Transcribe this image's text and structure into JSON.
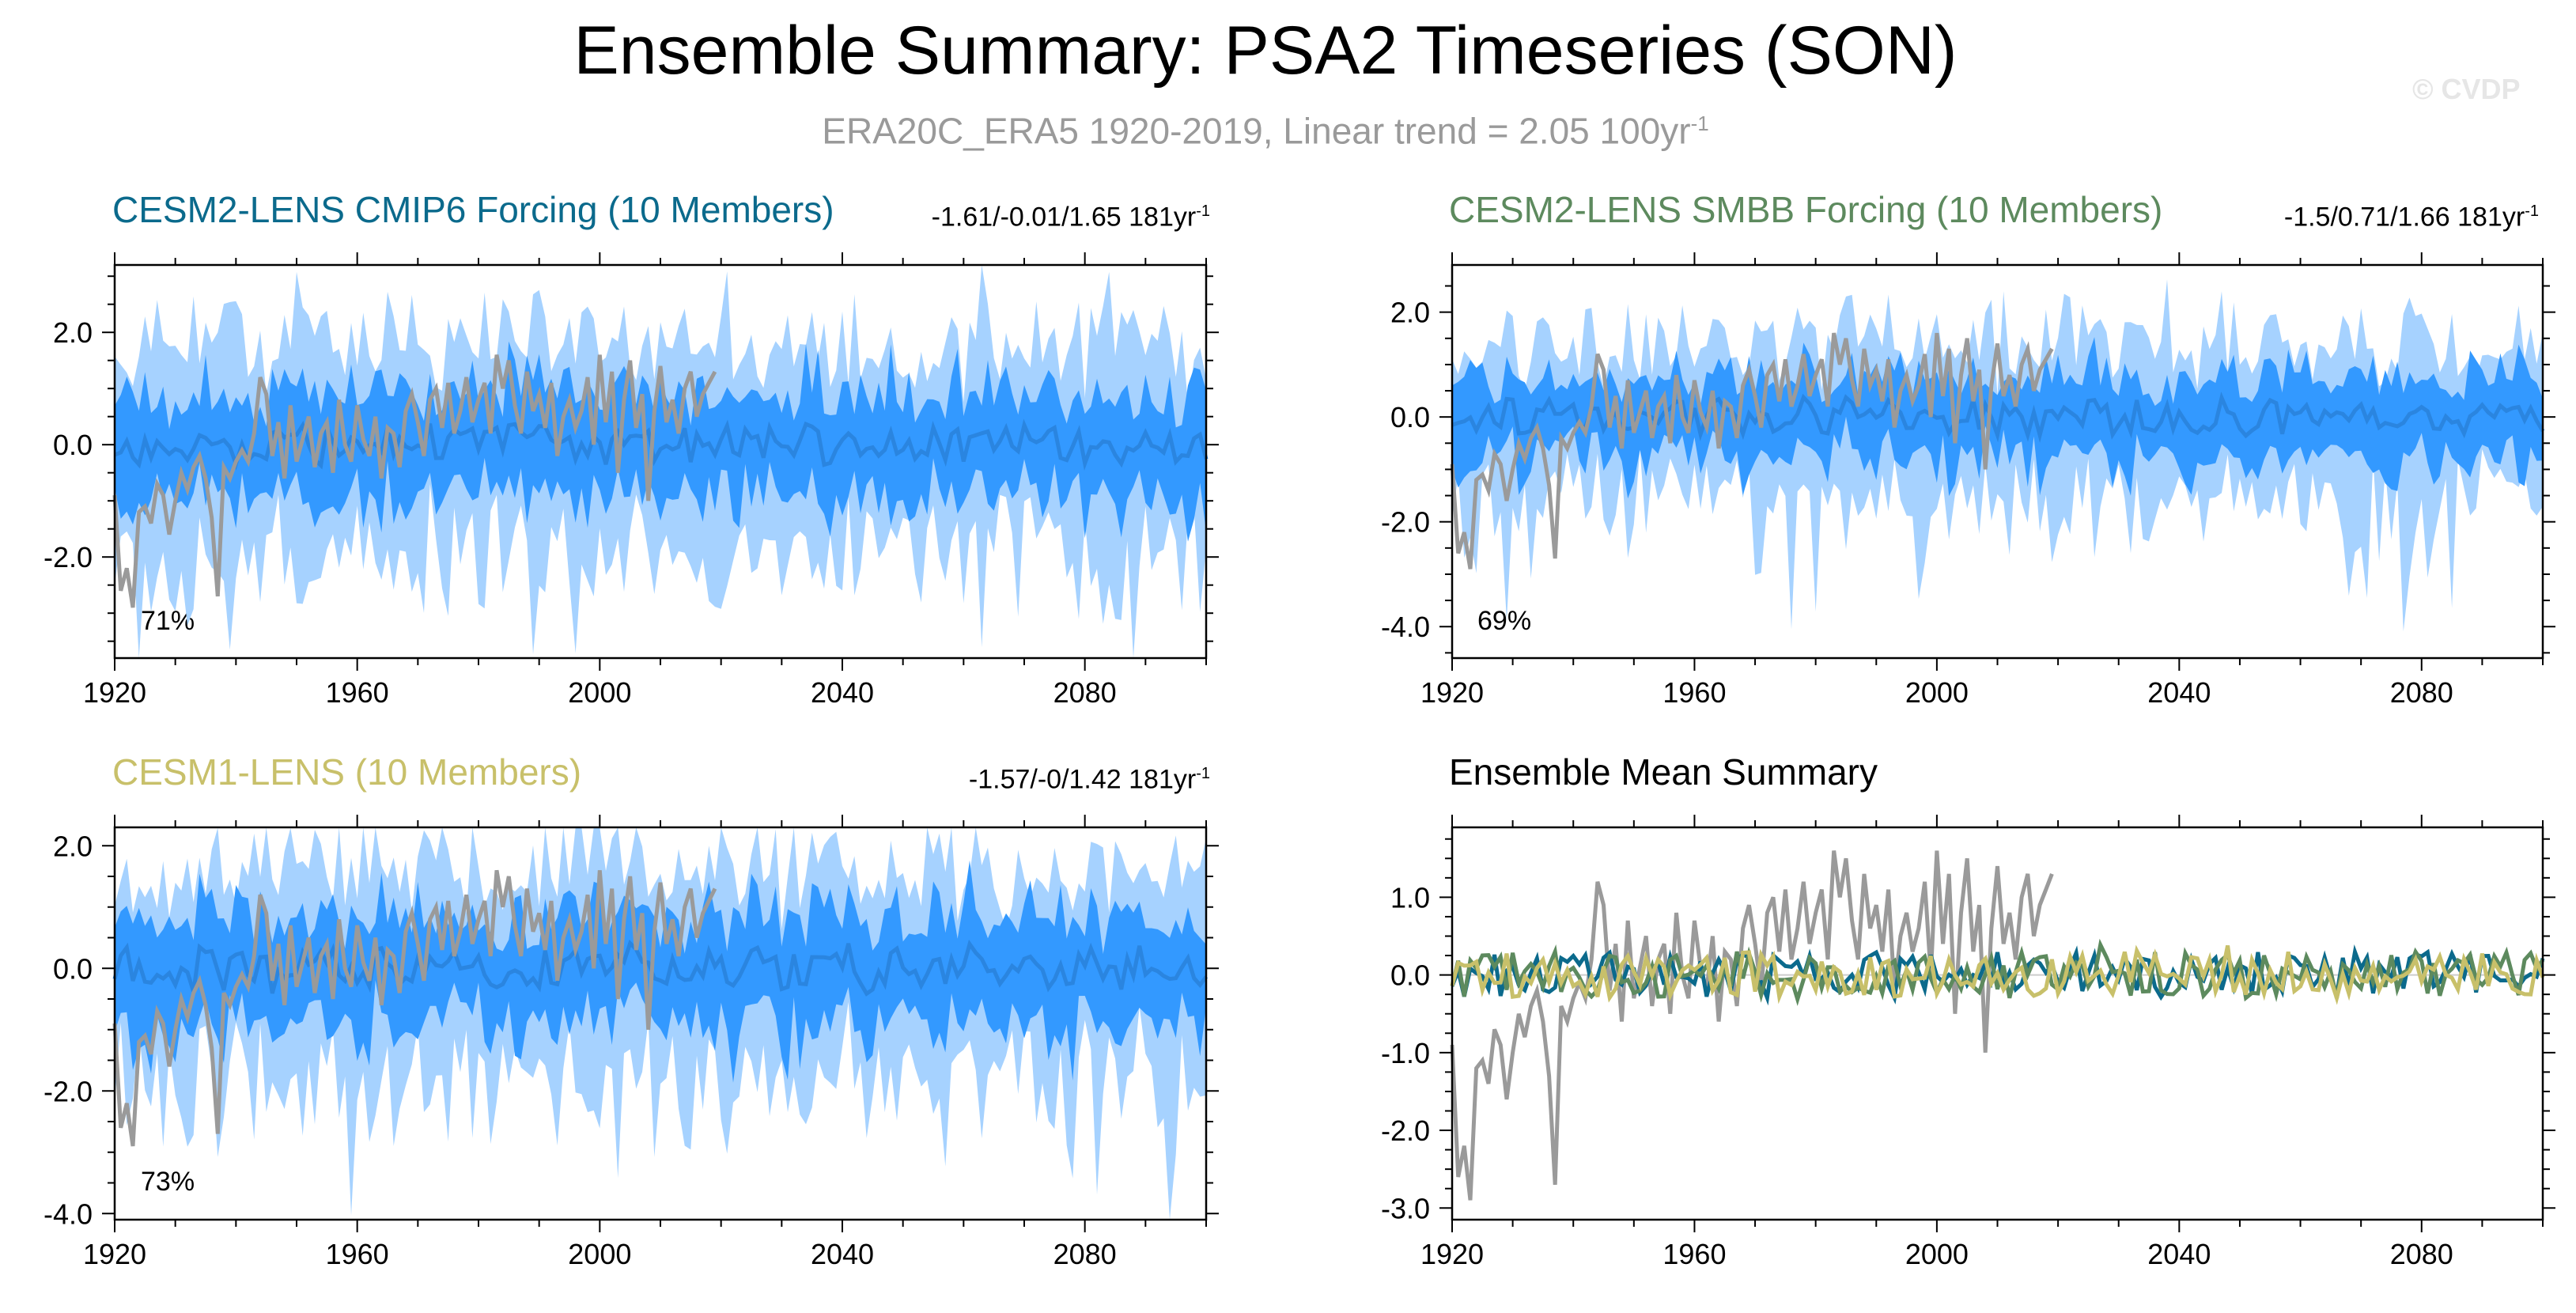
{
  "figure": {
    "title": "Ensemble Summary: PSA2 Timeseries (SON)",
    "subtitle_text": "ERA20C_ERA5 1920-2019, Linear trend = 2.05 100yr",
    "subtitle_sup": "-1",
    "watermark": "© CVDP"
  },
  "colors": {
    "band_outer": "#a6d2ff",
    "band_inner": "#3399ff",
    "ens_mean": "#2a85e0",
    "obs": "#9a9a9a",
    "cmip6": "#0b6a8c",
    "smbb": "#5d8a5e",
    "lens1": "#c8c06a"
  },
  "chart_data": [
    {
      "id": "cmip6",
      "type": "area",
      "title": "CESM2-LENS CMIP6 Forcing (10 Members)",
      "stats_text": "-1.61/-0.01/1.65 181yr",
      "stats_sup": "-1",
      "percent_label": "71%",
      "xlim": [
        1920,
        2100
      ],
      "ylim": [
        -3.8,
        3.2
      ],
      "x_ticks": [
        1920,
        1960,
        2000,
        2040,
        2080
      ],
      "y_ticks": [
        -2.0,
        0.0,
        2.0
      ],
      "y_tick_labels": [
        "-2.0",
        "0.0",
        "2.0"
      ],
      "series": [
        "min-max range",
        "10-90% range",
        "ensemble mean",
        "observations"
      ],
      "mean_amp": 0.35,
      "inner_half": 0.95,
      "outer_half": 1.75,
      "outer_lo_extra": 0.55,
      "seed": 11
    },
    {
      "id": "smbb",
      "type": "area",
      "title": "CESM2-LENS SMBB Forcing (10 Members)",
      "stats_text": "-1.5/0.71/1.66 181yr",
      "stats_sup": "-1",
      "percent_label": "69%",
      "xlim": [
        1920,
        2100
      ],
      "ylim": [
        -4.6,
        2.9
      ],
      "x_ticks": [
        1920,
        1960,
        2000,
        2040,
        2080
      ],
      "y_ticks": [
        -4.0,
        -2.0,
        0.0,
        2.0
      ],
      "y_tick_labels": [
        "-4.0",
        "-2.0",
        "0.0",
        "2.0"
      ],
      "series": [
        "min-max range",
        "10-90% range",
        "ensemble mean",
        "observations"
      ],
      "mean_amp": 0.3,
      "inner_half": 0.8,
      "outer_half": 1.35,
      "outer_lo_extra": 0.9,
      "seed": 23
    },
    {
      "id": "lens1",
      "type": "area",
      "title": "CESM1-LENS (10 Members)",
      "stats_text": "-1.57/-0/1.42 181yr",
      "stats_sup": "-1",
      "percent_label": "73%",
      "xlim": [
        1920,
        2100
      ],
      "ylim": [
        -4.1,
        2.3
      ],
      "x_ticks": [
        1920,
        1960,
        2000,
        2040,
        2080
      ],
      "y_ticks": [
        -4.0,
        -2.0,
        0.0,
        2.0
      ],
      "y_tick_labels": [
        "-4.0",
        "-2.0",
        "0.0",
        "2.0"
      ],
      "series": [
        "min-max range",
        "10-90% range",
        "ensemble mean",
        "observations"
      ],
      "mean_amp": 0.35,
      "inner_half": 0.9,
      "outer_half": 1.6,
      "outer_lo_extra": 0.8,
      "seed": 37
    },
    {
      "id": "summary",
      "type": "line",
      "title": "Ensemble Mean Summary",
      "xlim": [
        1920,
        2100
      ],
      "ylim": [
        -3.15,
        1.9
      ],
      "x_ticks": [
        1920,
        1960,
        2000,
        2040,
        2080
      ],
      "y_ticks": [
        -3.0,
        -2.0,
        -1.0,
        0.0,
        1.0
      ],
      "y_tick_labels": [
        "-3.0",
        "-2.0",
        "-1.0",
        "0.0",
        "1.0"
      ],
      "series": [
        {
          "name": "ERA20C_ERA5",
          "color_key": "obs",
          "seed": 5,
          "amp": 0.0
        },
        {
          "name": "CESM2-LENS CMIP6",
          "color_key": "cmip6",
          "seed": 61,
          "amp": 0.3
        },
        {
          "name": "CESM2-LENS SMBB",
          "color_key": "smbb",
          "seed": 73,
          "amp": 0.3
        },
        {
          "name": "CESM1-LENS",
          "color_key": "lens1",
          "seed": 89,
          "amp": 0.3
        }
      ]
    }
  ],
  "observations": {
    "name": "ERA20C_ERA5",
    "years": [
      1920,
      2019
    ],
    "values": [
      -0.9,
      -2.6,
      -2.2,
      -2.9,
      -1.2,
      -1.1,
      -1.4,
      -0.7,
      -0.9,
      -1.6,
      -1.0,
      -0.5,
      -0.8,
      -0.4,
      -0.2,
      -0.6,
      -1.3,
      -2.7,
      -0.4,
      -0.6,
      -0.3,
      -0.1,
      -0.3,
      0.2,
      1.2,
      0.9,
      -0.2,
      0.4,
      -0.6,
      0.7,
      -0.3,
      0.1,
      0.5,
      -0.4,
      0.2,
      0.4,
      -0.5,
      0.8,
      0.0,
      -0.3,
      0.7,
      0.1,
      -0.2,
      0.5,
      -0.6,
      0.3,
      0.2,
      -0.4,
      0.6,
      0.9,
      0.4,
      -0.2,
      0.8,
      1.0,
      0.3,
      1.1,
      0.2,
      0.6,
      1.2,
      0.4,
      0.8,
      1.1,
      0.2,
      1.6,
      1.0,
      1.5,
      0.7,
      0.2,
      1.3,
      0.6,
      0.9,
      0.3,
      1.1,
      -0.2,
      0.5,
      0.8,
      0.3,
      0.6,
      1.2,
      0.0,
      1.6,
      0.4,
      1.3,
      -0.5,
      0.8,
      1.5,
      0.3,
      0.9,
      -1.0,
      0.6,
      1.4,
      0.4,
      0.8,
      0.2,
      1.0,
      1.3,
      0.5,
      0.9,
      1.1,
      1.3
    ]
  }
}
